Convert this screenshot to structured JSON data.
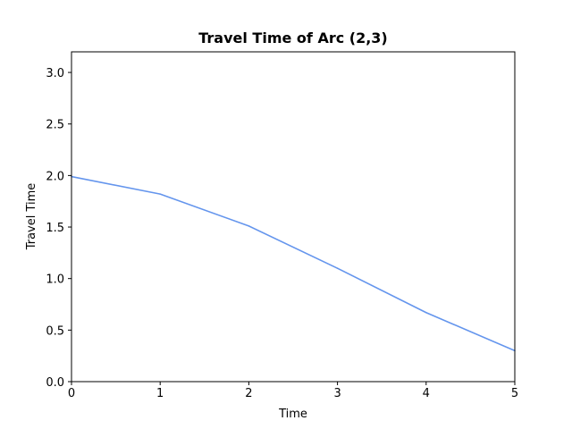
{
  "chart_data": {
    "type": "line",
    "title": "Travel Time of Arc (2,3)",
    "xlabel": "Time",
    "ylabel": "Travel Time",
    "xlim": [
      0,
      5
    ],
    "ylim": [
      0,
      3.2
    ],
    "x_ticks": [
      "0",
      "1",
      "2",
      "3",
      "4",
      "5"
    ],
    "y_ticks": [
      "0.0",
      "0.5",
      "1.0",
      "1.5",
      "2.0",
      "2.5",
      "3.0"
    ],
    "grid": false,
    "series": [
      {
        "color": "#6495ED",
        "x": [
          0,
          1,
          2,
          3,
          4,
          5
        ],
        "y": [
          1.99,
          1.82,
          1.51,
          1.1,
          0.67,
          0.3
        ]
      }
    ]
  }
}
